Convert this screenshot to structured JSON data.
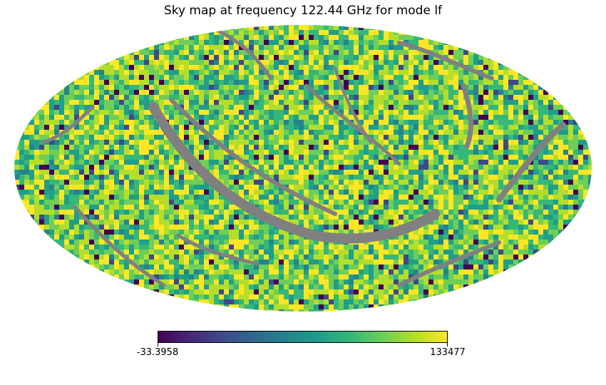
{
  "chart_data": {
    "type": "heatmap",
    "projection": "mollweide",
    "title": "Sky map at frequency 122.44 GHz for mode lf",
    "colormap": "viridis",
    "colorbar": {
      "min": -33.3958,
      "max": 133477,
      "min_label": "-33.3958",
      "max_label": "133477",
      "orientation": "horizontal",
      "placement": "bottom"
    },
    "masked_color": "#808080",
    "value_distribution": "mostly upper-range values (green to yellow) with sparse low values (dark purple/blue), and bands of masked (grey) pixels along scan paths",
    "grid": false
  },
  "colors": {
    "viridis": [
      "#440154",
      "#482878",
      "#3e4989",
      "#31688e",
      "#26828e",
      "#1f9e89",
      "#35b779",
      "#6ece58",
      "#b5de2b",
      "#fde725"
    ],
    "masked": "#808080"
  }
}
